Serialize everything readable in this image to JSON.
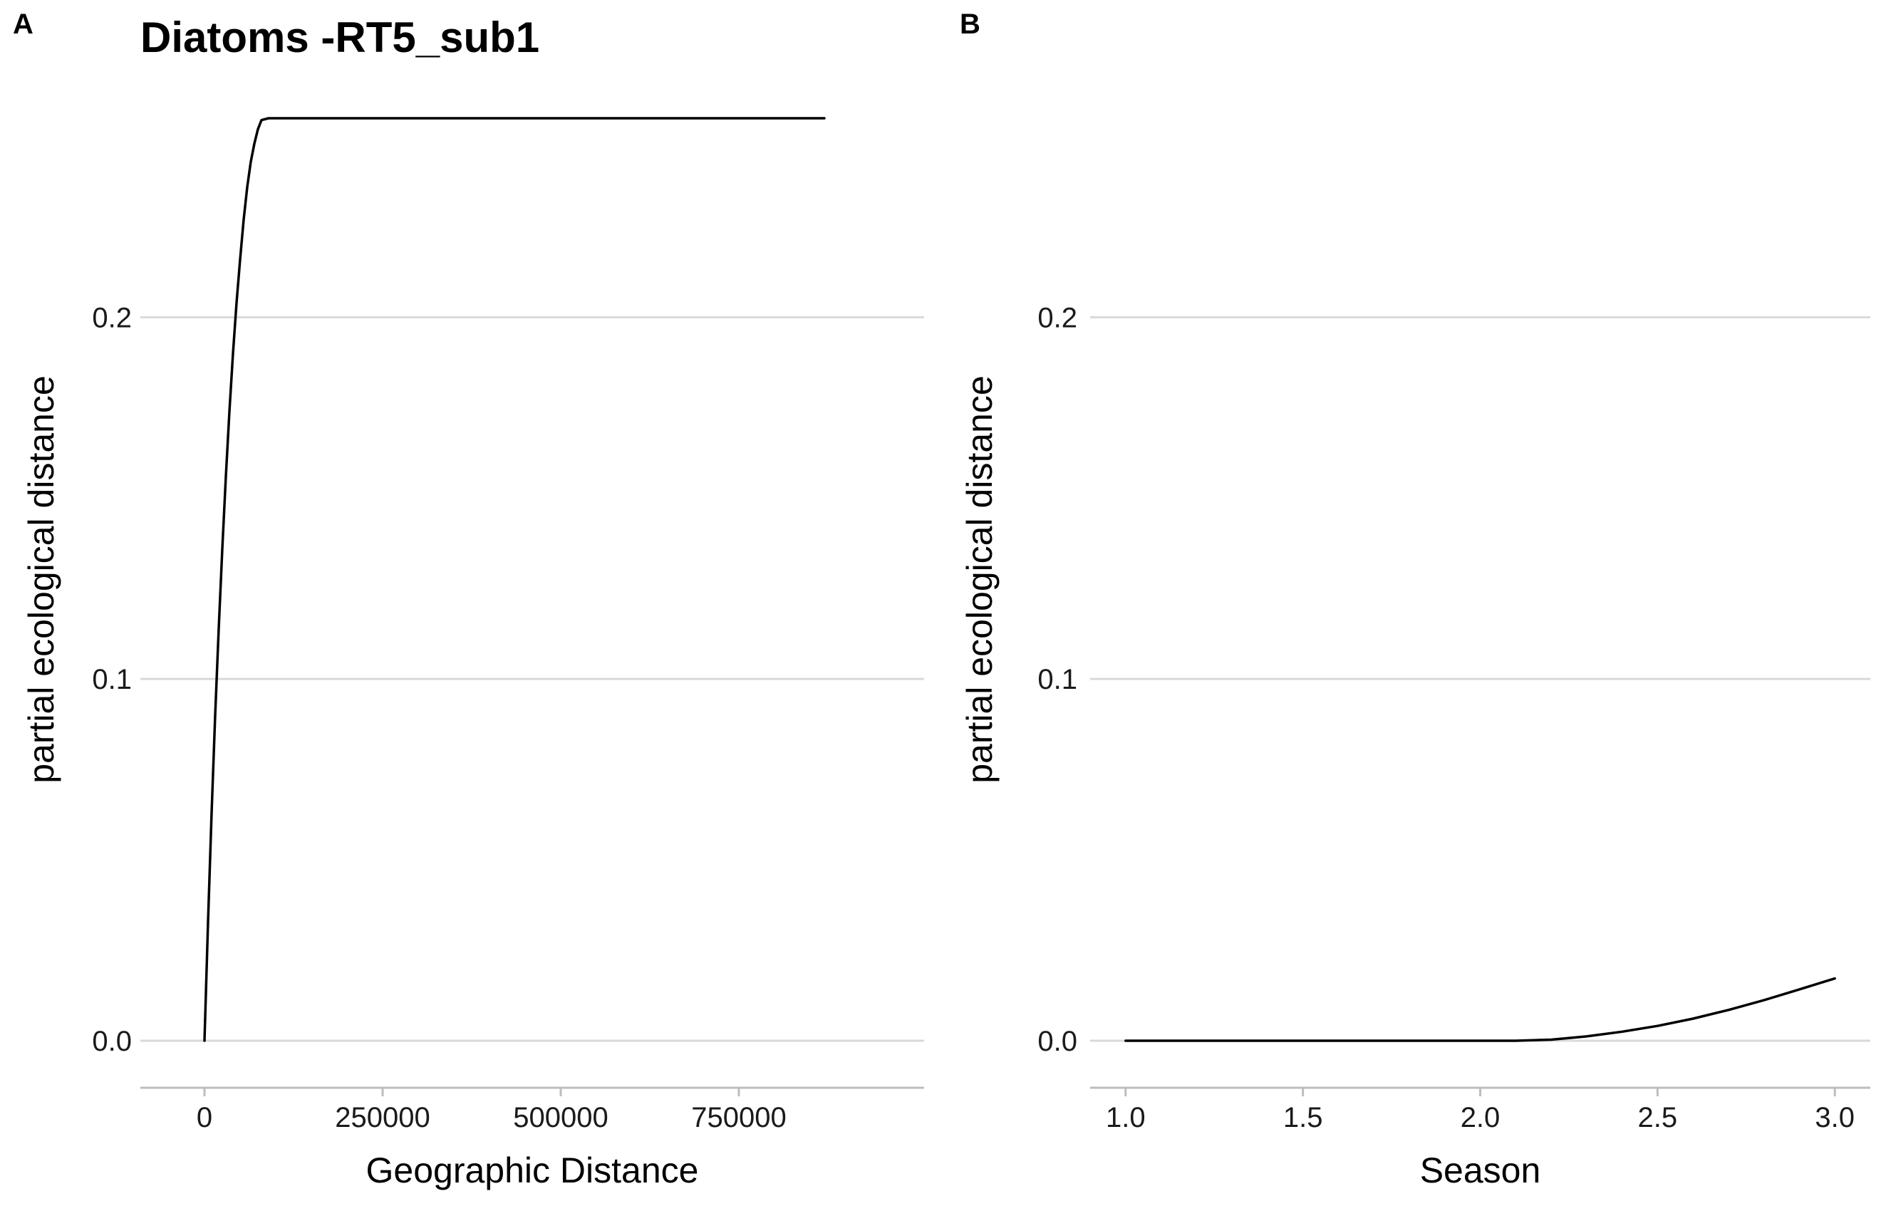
{
  "figure": {
    "title": "Diatoms -RT5_sub1",
    "panels": [
      "A",
      "B"
    ]
  },
  "chart_data": [
    {
      "type": "line",
      "panel": "A",
      "title": "Diatoms -RT5_sub1",
      "xlabel": "Geographic Distance",
      "ylabel": "partial ecological distance",
      "xlim": [
        -90000,
        1010000
      ],
      "ylim": [
        -0.013,
        0.268
      ],
      "xticks": [
        0,
        250000,
        500000,
        750000
      ],
      "xtick_labels": [
        "0",
        "250000",
        "500000",
        "750000"
      ],
      "yticks": [
        0.0,
        0.1,
        0.2
      ],
      "ytick_labels": [
        "0.0",
        "0.1",
        "0.2"
      ],
      "grid": "horizontal-major",
      "color": "#000000",
      "x": [
        0,
        5000,
        10000,
        15000,
        20000,
        25000,
        30000,
        35000,
        40000,
        45000,
        50000,
        55000,
        60000,
        65000,
        70000,
        75000,
        80000,
        90000,
        200000,
        400000,
        600000,
        800000,
        870000
      ],
      "y": [
        0.0,
        0.033,
        0.063,
        0.09,
        0.114,
        0.136,
        0.156,
        0.174,
        0.19,
        0.204,
        0.216,
        0.227,
        0.236,
        0.243,
        0.248,
        0.252,
        0.2545,
        0.255,
        0.255,
        0.255,
        0.255,
        0.255,
        0.255
      ]
    },
    {
      "type": "line",
      "panel": "B",
      "xlabel": "Season",
      "ylabel": "partial ecological distance",
      "xlim": [
        0.9,
        3.1
      ],
      "ylim": [
        -0.013,
        0.268
      ],
      "xticks": [
        1.0,
        1.5,
        2.0,
        2.5,
        3.0
      ],
      "xtick_labels": [
        "1.0",
        "1.5",
        "2.0",
        "2.5",
        "3.0"
      ],
      "yticks": [
        0.0,
        0.1,
        0.2
      ],
      "ytick_labels": [
        "0.0",
        "0.1",
        "0.2"
      ],
      "grid": "horizontal-major",
      "color": "#000000",
      "x": [
        1.0,
        1.25,
        1.5,
        1.75,
        2.0,
        2.1,
        2.2,
        2.3,
        2.4,
        2.5,
        2.6,
        2.7,
        2.8,
        2.9,
        3.0
      ],
      "y": [
        0.0,
        0.0,
        0.0,
        0.0,
        0.0,
        0.0,
        0.0003,
        0.0012,
        0.0025,
        0.0041,
        0.0061,
        0.0085,
        0.0112,
        0.0142,
        0.0172
      ]
    }
  ]
}
